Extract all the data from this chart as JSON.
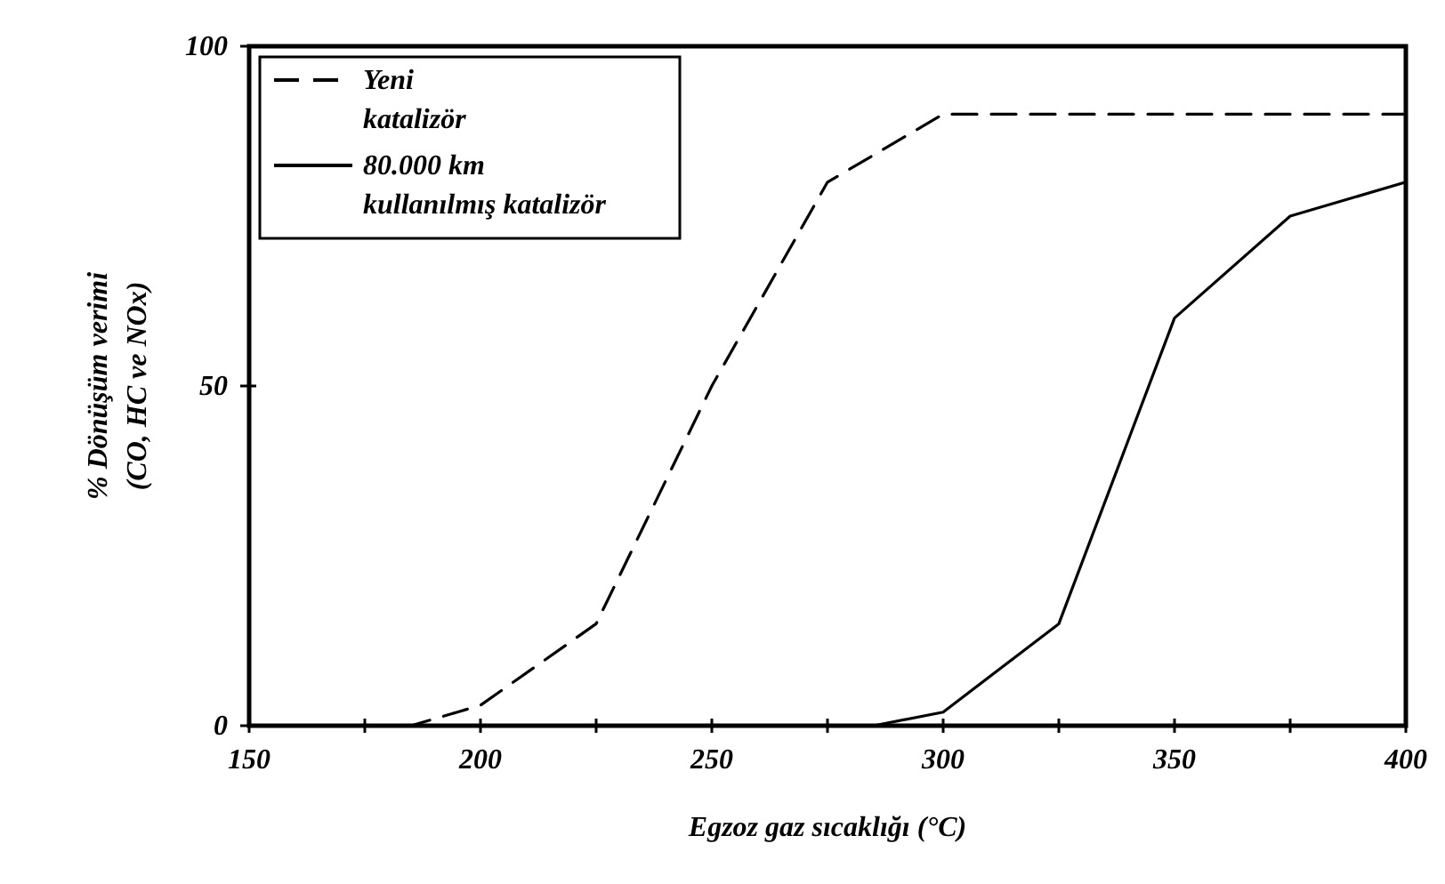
{
  "chart_data": {
    "type": "line",
    "xlabel": "Egzoz gaz sıcaklığı (°C)",
    "ylabel": "% Dönüşüm verimi\n(CO, HC ve NOx)",
    "xlim": [
      150,
      400
    ],
    "ylim": [
      0,
      100
    ],
    "xticks": [
      150,
      {
        "value": 175,
        "label": null
      },
      200,
      {
        "value": 225,
        "label": null
      },
      250,
      {
        "value": 275,
        "label": null
      },
      300,
      {
        "value": 325,
        "label": null
      },
      350,
      {
        "value": 375,
        "label": null
      },
      400
    ],
    "yticks": [
      0,
      50,
      100
    ],
    "grid": false,
    "legend": "top left",
    "series": [
      {
        "name": "Yeni katalizör",
        "color": "#000000",
        "line_style": "dashed",
        "x": [
          150,
          185,
          195,
          200,
          225,
          250,
          275,
          300,
          400
        ],
        "values": [
          0,
          0,
          2,
          3,
          15,
          50,
          80,
          90,
          90
        ]
      },
      {
        "name": "80.000 km kullanılmış katalizör",
        "color": "#000000",
        "line_style": "solid",
        "x": [
          150,
          285,
          300,
          325,
          350,
          375,
          400
        ],
        "values": [
          0,
          0,
          2,
          15,
          60,
          75,
          80
        ]
      }
    ]
  }
}
